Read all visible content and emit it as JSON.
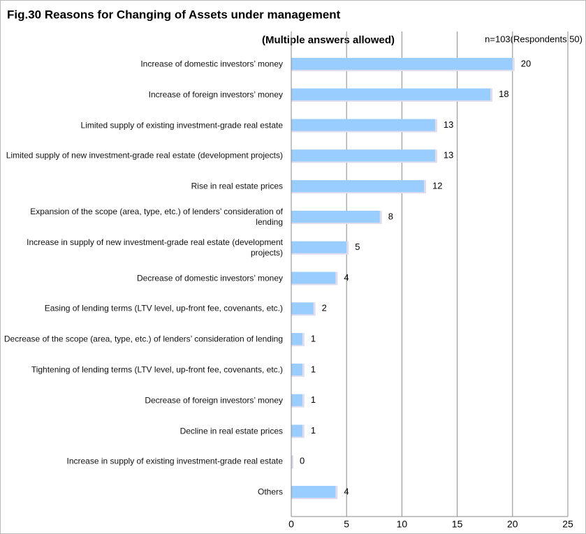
{
  "chart_data": {
    "type": "bar",
    "orientation": "horizontal",
    "title": "Fig.30 Reasons for Changing of Assets under management",
    "subtitle": "(Multiple answers allowed)",
    "note": "n=103(Respondents 50)",
    "categories": [
      "Increase of domestic investors’ money",
      "Increase of foreign investors’ money",
      "Limited supply of existing investment-grade real estate",
      "Limited supply of new investment-grade real estate (development projects)",
      "Rise in real estate prices",
      "Expansion of the scope (area, type, etc.) of lenders’ consideration of lending",
      "Increase in supply of new investment-grade real estate (development projects)",
      "Decrease of domestic investors’ money",
      "Easing of lending terms (LTV level, up-front fee, covenants, etc.)",
      "Decrease of the scope (area, type, etc.) of lenders’ consideration of lending",
      "Tightening of lending terms (LTV level, up-front fee, covenants, etc.)",
      "Decrease of foreign investors’ money",
      "Decline in real estate prices",
      "Increase in supply of existing investment-grade real estate",
      "Others"
    ],
    "values": [
      20,
      18,
      13,
      13,
      12,
      8,
      5,
      4,
      2,
      1,
      1,
      1,
      1,
      0,
      4
    ],
    "color": "#99ccff",
    "xlim": [
      0,
      25
    ],
    "xticks": [
      0,
      5,
      10,
      15,
      20,
      25
    ],
    "grid": true
  }
}
